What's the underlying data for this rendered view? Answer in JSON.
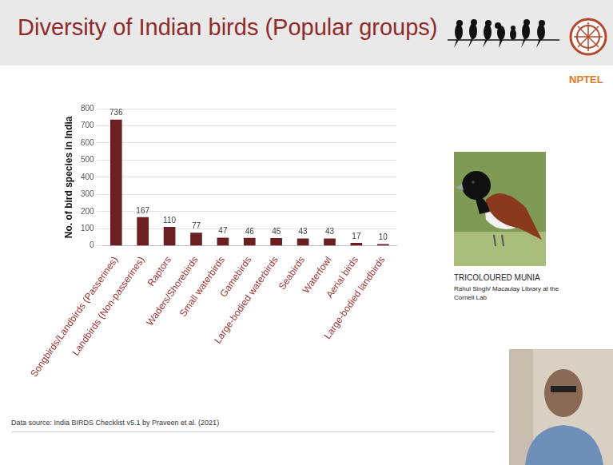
{
  "slide": {
    "title": "Diversity of Indian birds (Popular groups)",
    "logo_text": "NPTEL",
    "image_caption": "TRICOLOURED MUNIA",
    "image_credit": "Rahul Singh/ Macaulay Library at the Cornell Lab",
    "data_source": "Data source: India BIRDS Checklist v5.1 by Praveen et al. (2021)"
  },
  "chart_data": {
    "type": "bar",
    "y_label": "No. of bird species in India",
    "categories": [
      "Songbirds/Landbirds (Passerines)",
      "Landbirds (Non-passerines)",
      "Raptors",
      "Waders/Shorebirds",
      "Small waterbirds",
      "Gamebirds",
      "Large-bodied waterbirds",
      "Seabirds",
      "Waterfowl",
      "Aerial birds",
      "Large-bodied landbirds"
    ],
    "values": [
      736,
      167,
      110,
      77,
      47,
      46,
      45,
      43,
      43,
      17,
      10
    ],
    "color": "#6b1f22",
    "ylim": [
      0,
      800
    ],
    "yticks": [
      0,
      100,
      200,
      300,
      400,
      500,
      600,
      700,
      800
    ],
    "grid": true,
    "data_labels": true
  }
}
